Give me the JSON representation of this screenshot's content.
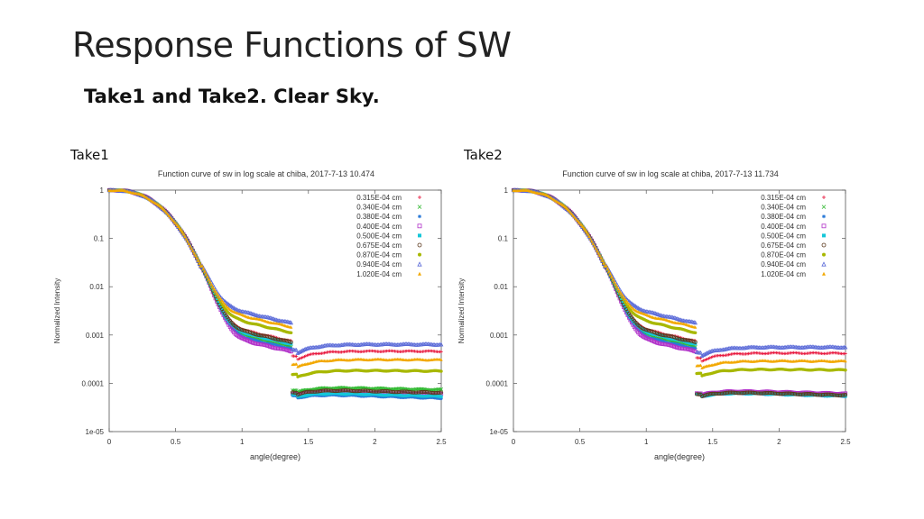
{
  "slide": {
    "title": "Response Functions of SW",
    "subtitle": "Take1 and Take2. Clear Sky."
  },
  "panels": [
    {
      "label": "Take1"
    },
    {
      "label": "Take2"
    }
  ],
  "chart_data": [
    {
      "type": "scatter",
      "title": "Function curve of sw in log scale at chiba, 2017-7-13 10.474",
      "xlabel": "angle(degree)",
      "ylabel": "Normalized Intensity",
      "xlim": [
        0,
        2.5
      ],
      "ylim": [
        1e-05,
        1
      ],
      "yscale": "log",
      "x_ticks": [
        "0",
        "0.5",
        "1",
        "1.5",
        "2",
        "2.5"
      ],
      "y_ticks": [
        "1",
        "0.1",
        "0.01",
        "0.001",
        "0.0001",
        "1e-05"
      ],
      "legend_position": "top-right",
      "series": [
        {
          "name": "0.315E-04 cm",
          "color": "#e8163c",
          "marker": "plus",
          "t": 0.55,
          "c": 0.00045,
          "g": 1.0
        },
        {
          "name": "0.340E-04 cm",
          "color": "#2fb82f",
          "marker": "cross",
          "t": 0.4,
          "c": 6.5e-05,
          "g": 1.05
        },
        {
          "name": "0.380E-04 cm",
          "color": "#2a7ad8",
          "marker": "star",
          "t": 0.35,
          "c": 4e-05,
          "g": 1.08
        },
        {
          "name": "0.400E-04 cm",
          "color": "#b030c8",
          "marker": "square",
          "t": 0.3,
          "c": 5e-05,
          "g": 1.1
        },
        {
          "name": "0.500E-04 cm",
          "color": "#15c6d8",
          "marker": "fsquare",
          "t": 0.45,
          "c": 4.5e-05,
          "g": 1.06
        },
        {
          "name": "0.675E-04 cm",
          "color": "#5c3a1e",
          "marker": "circle",
          "t": 0.5,
          "c": 5.5e-05,
          "g": 1.04
        },
        {
          "name": "0.870E-04 cm",
          "color": "#a8b800",
          "marker": "fcircle",
          "t": 0.85,
          "c": 0.00017,
          "g": 0.98
        },
        {
          "name": "0.940E-04 cm",
          "color": "#5a6ad8",
          "marker": "triangle",
          "t": 1.4,
          "c": 0.00063,
          "g": 0.95
        },
        {
          "name": "1.020E-04 cm",
          "color": "#f2a800",
          "marker": "ftriangle",
          "t": 1.15,
          "c": 0.0003,
          "g": 0.96
        }
      ]
    },
    {
      "type": "scatter",
      "title": "Function curve of sw in log scale at chiba, 2017-7-13 11.734",
      "xlabel": "angle(degree)",
      "ylabel": "Normalized Intensity",
      "xlim": [
        0,
        2.5
      ],
      "ylim": [
        1e-05,
        1
      ],
      "yscale": "log",
      "x_ticks": [
        "0",
        "0.5",
        "1",
        "1.5",
        "2",
        "2.5"
      ],
      "y_ticks": [
        "1",
        "0.1",
        "0.01",
        "0.001",
        "0.0001",
        "1e-05"
      ],
      "legend_position": "top-right",
      "series": [
        {
          "name": "0.315E-04 cm",
          "color": "#e8163c",
          "marker": "plus",
          "t": 0.55,
          "c": 0.00041,
          "g": 1.0
        },
        {
          "name": "0.340E-04 cm",
          "color": "#2fb82f",
          "marker": "cross",
          "t": 0.4,
          "c": 5e-05,
          "g": 1.05
        },
        {
          "name": "0.380E-04 cm",
          "color": "#2a7ad8",
          "marker": "star",
          "t": 0.35,
          "c": 4.5e-05,
          "g": 1.08
        },
        {
          "name": "0.400E-04 cm",
          "color": "#b030c8",
          "marker": "square",
          "t": 0.3,
          "c": 5.2e-05,
          "g": 1.1
        },
        {
          "name": "0.500E-04 cm",
          "color": "#15c6d8",
          "marker": "fsquare",
          "t": 0.45,
          "c": 4.6e-05,
          "g": 1.06
        },
        {
          "name": "0.675E-04 cm",
          "color": "#5c3a1e",
          "marker": "circle",
          "t": 0.5,
          "c": 4.8e-05,
          "g": 1.04
        },
        {
          "name": "0.870E-04 cm",
          "color": "#a8b800",
          "marker": "fcircle",
          "t": 0.85,
          "c": 0.00018,
          "g": 0.98
        },
        {
          "name": "0.940E-04 cm",
          "color": "#5a6ad8",
          "marker": "triangle",
          "t": 1.4,
          "c": 0.00055,
          "g": 0.95
        },
        {
          "name": "1.020E-04 cm",
          "color": "#f2a800",
          "marker": "ftriangle",
          "t": 1.15,
          "c": 0.00028,
          "g": 0.96
        }
      ]
    }
  ]
}
